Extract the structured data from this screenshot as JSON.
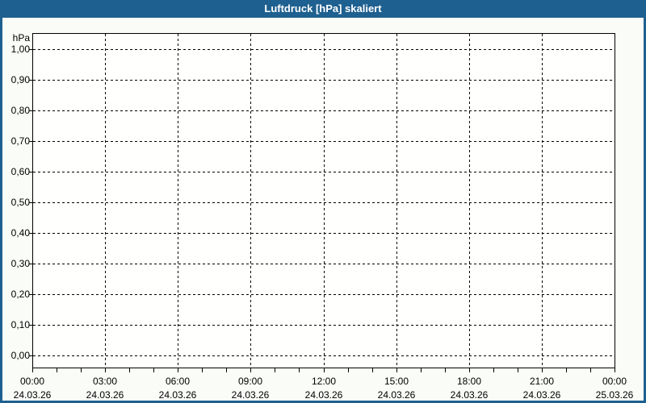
{
  "title": "Luftdruck [hPa] skaliert",
  "colors": {
    "frame_blue": "#1E6090",
    "title_text": "#FFFFFF",
    "background": "#FAFDF7",
    "plot_background": "#FFFFFE",
    "grid_line": "#000000",
    "axis_line": "#000000",
    "label_text": "#000000"
  },
  "chart_data": {
    "type": "line",
    "title": "Luftdruck [hPa] skaliert",
    "xlabel": "",
    "ylabel": "hPa",
    "ylim": [
      0.0,
      1.0
    ],
    "y_tick_step": 0.1,
    "y_ticks": [
      "1,00",
      "0,90",
      "0,80",
      "0,70",
      "0,60",
      "0,50",
      "0,40",
      "0,30",
      "0,20",
      "0,10",
      "0,00"
    ],
    "x_range_hours": 24,
    "major_tick_interval_hours": 3,
    "minor_tick_interval_hours": 1,
    "x_ticks": [
      {
        "time": "00:00",
        "date": "24.03.26"
      },
      {
        "time": "03:00",
        "date": "24.03.26"
      },
      {
        "time": "06:00",
        "date": "24.03.26"
      },
      {
        "time": "09:00",
        "date": "24.03.26"
      },
      {
        "time": "12:00",
        "date": "24.03.26"
      },
      {
        "time": "15:00",
        "date": "24.03.26"
      },
      {
        "time": "18:00",
        "date": "24.03.26"
      },
      {
        "time": "21:00",
        "date": "24.03.26"
      },
      {
        "time": "00:00",
        "date": "25.03.26"
      }
    ],
    "grid": "dashed",
    "legend": "none",
    "series": []
  }
}
